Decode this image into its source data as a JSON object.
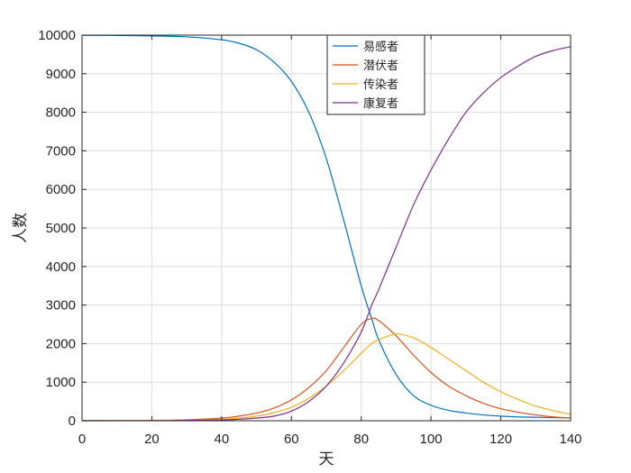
{
  "chart_data": {
    "type": "line",
    "title": "",
    "xlabel": "天",
    "ylabel": "人数",
    "xlim": [
      0,
      140
    ],
    "ylim": [
      0,
      10000
    ],
    "xticks": [
      0,
      20,
      40,
      60,
      80,
      100,
      120,
      140
    ],
    "yticks": [
      0,
      1000,
      2000,
      3000,
      4000,
      5000,
      6000,
      7000,
      8000,
      9000,
      10000
    ],
    "grid": true,
    "legend_position": "top-center",
    "x": [
      0,
      10,
      20,
      30,
      40,
      45,
      50,
      55,
      60,
      65,
      70,
      75,
      80,
      83,
      85,
      90,
      95,
      100,
      105,
      110,
      115,
      120,
      125,
      130,
      135,
      140
    ],
    "series": [
      {
        "name": "易感者",
        "color": "#0072BD",
        "values": [
          9995,
          9992,
          9980,
          9955,
          9880,
          9790,
          9620,
          9300,
          8800,
          8000,
          6800,
          5200,
          3500,
          2650,
          2100,
          1200,
          650,
          400,
          270,
          200,
          150,
          120,
          100,
          90,
          80,
          75
        ]
      },
      {
        "name": "潜伏者",
        "color": "#D95319",
        "values": [
          3,
          5,
          10,
          25,
          70,
          120,
          200,
          330,
          540,
          860,
          1300,
          1900,
          2500,
          2650,
          2600,
          2200,
          1700,
          1250,
          900,
          650,
          450,
          310,
          220,
          150,
          100,
          70
        ]
      },
      {
        "name": "传染者",
        "color": "#EDB120",
        "values": [
          1,
          3,
          6,
          15,
          40,
          70,
          120,
          210,
          350,
          580,
          900,
          1300,
          1750,
          2000,
          2100,
          2250,
          2150,
          1900,
          1600,
          1300,
          1000,
          750,
          550,
          380,
          260,
          170
        ]
      },
      {
        "name": "康复者",
        "color": "#7E2F8E",
        "values": [
          0,
          1,
          3,
          8,
          20,
          40,
          70,
          120,
          250,
          500,
          900,
          1500,
          2300,
          3000,
          3400,
          4500,
          5600,
          6500,
          7300,
          8000,
          8500,
          8900,
          9200,
          9450,
          9600,
          9700
        ]
      }
    ]
  }
}
